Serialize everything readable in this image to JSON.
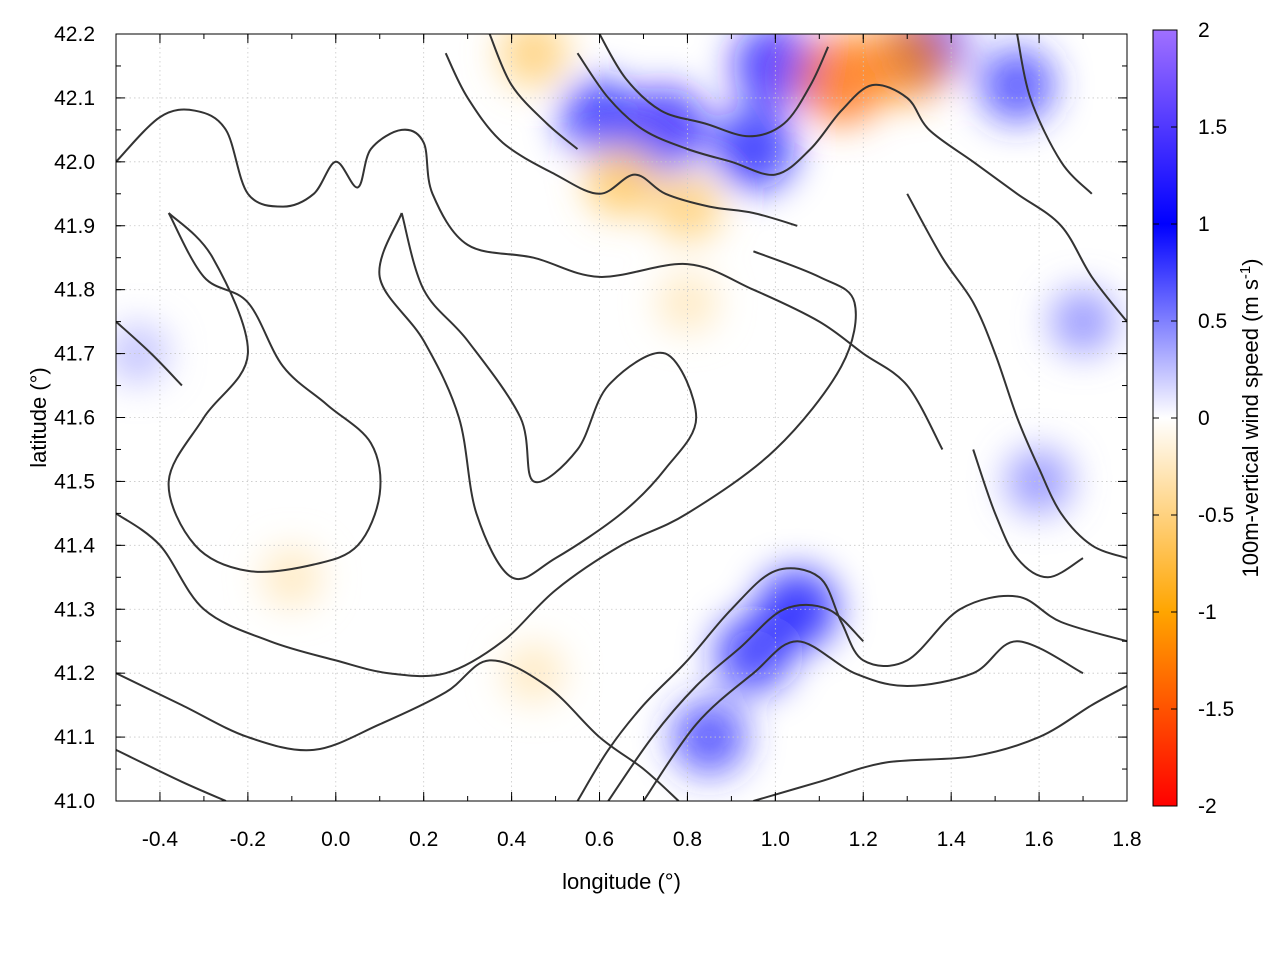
{
  "chart_data": {
    "type": "heatmap",
    "title": "",
    "xlabel": "longitude (°)",
    "ylabel": "latitude (°)",
    "colorbar_label": "100m-vertical wind speed (m s",
    "colorbar_label_sup": "-1",
    "colorbar_label_end": ")",
    "xlim": [
      -0.5,
      1.8
    ],
    "ylim": [
      41.0,
      42.2
    ],
    "x_ticks": [
      -0.4,
      -0.2,
      0.0,
      0.2,
      0.4,
      0.6,
      0.8,
      1.0,
      1.2,
      1.4,
      1.6,
      1.8
    ],
    "x_tick_labels": [
      "-0.4",
      "-0.2",
      "0.0",
      "0.2",
      "0.4",
      "0.6",
      "0.8",
      "1.0",
      "1.2",
      "1.4",
      "1.6",
      "1.8"
    ],
    "y_ticks": [
      41.0,
      41.1,
      41.2,
      41.3,
      41.4,
      41.5,
      41.6,
      41.7,
      41.8,
      41.9,
      42.0,
      42.1,
      42.2
    ],
    "y_tick_labels": [
      "41.0",
      "41.1",
      "41.2",
      "41.3",
      "41.4",
      "41.5",
      "41.6",
      "41.7",
      "41.8",
      "41.9",
      "42.0",
      "42.1",
      "42.2"
    ],
    "zlim": [
      -2,
      2
    ],
    "colorbar_ticks": [
      2,
      1.5,
      1,
      0.5,
      0,
      -0.5,
      -1,
      -1.5,
      -2
    ],
    "colorbar_tick_labels": [
      "2",
      "1.5",
      "1",
      "0.5",
      "0",
      "-0.5",
      "-1",
      "-1.5",
      "-2"
    ],
    "colormap": [
      {
        "value": -2,
        "color": "#ff0000"
      },
      {
        "value": -1,
        "color": "#ffa500"
      },
      {
        "value": 0,
        "color": "#ffffff"
      },
      {
        "value": 1,
        "color": "#0000ff"
      },
      {
        "value": 2,
        "color": "#a070ff"
      }
    ],
    "grid": true,
    "contour_color": "#333333",
    "hotspots": [
      {
        "x": 0.6,
        "y": 42.07,
        "v": 0.9
      },
      {
        "x": 0.75,
        "y": 42.05,
        "v": 1.2
      },
      {
        "x": 0.95,
        "y": 42.02,
        "v": 1.1
      },
      {
        "x": 1.0,
        "y": 42.15,
        "v": 1.2
      },
      {
        "x": 1.35,
        "y": 42.18,
        "v": 0.9
      },
      {
        "x": 1.55,
        "y": 42.12,
        "v": 0.8
      },
      {
        "x": 0.45,
        "y": 42.17,
        "v": -0.6
      },
      {
        "x": 0.65,
        "y": 41.97,
        "v": -0.7
      },
      {
        "x": 1.15,
        "y": 42.13,
        "v": -1.4
      },
      {
        "x": 1.3,
        "y": 42.16,
        "v": -1.2
      },
      {
        "x": 0.8,
        "y": 41.93,
        "v": -0.6
      },
      {
        "x": 1.05,
        "y": 41.3,
        "v": 1.0
      },
      {
        "x": 0.95,
        "y": 41.23,
        "v": 0.9
      },
      {
        "x": 0.85,
        "y": 41.1,
        "v": 0.8
      },
      {
        "x": 1.6,
        "y": 41.5,
        "v": 0.5
      },
      {
        "x": 1.7,
        "y": 41.75,
        "v": 0.5
      },
      {
        "x": 0.8,
        "y": 41.78,
        "v": -0.3
      },
      {
        "x": -0.1,
        "y": 41.35,
        "v": -0.3
      },
      {
        "x": 0.45,
        "y": 41.2,
        "v": -0.3
      },
      {
        "x": -0.45,
        "y": 41.7,
        "v": 0.3
      }
    ],
    "contours": [
      [
        [
          -0.5,
          42.0
        ],
        [
          -0.4,
          42.07
        ],
        [
          -0.32,
          42.08
        ],
        [
          -0.25,
          42.05
        ],
        [
          -0.2,
          41.95
        ],
        [
          -0.12,
          41.93
        ],
        [
          -0.05,
          41.95
        ],
        [
          0.0,
          42.0
        ],
        [
          0.05,
          41.96
        ],
        [
          0.08,
          42.02
        ],
        [
          0.15,
          42.05
        ],
        [
          0.2,
          42.03
        ],
        [
          0.22,
          41.95
        ],
        [
          0.3,
          41.87
        ],
        [
          0.45,
          41.85
        ],
        [
          0.6,
          41.82
        ],
        [
          0.8,
          41.84
        ],
        [
          0.95,
          41.8
        ],
        [
          1.1,
          41.75
        ],
        [
          1.2,
          41.7
        ],
        [
          1.3,
          41.65
        ],
        [
          1.38,
          41.55
        ]
      ],
      [
        [
          -0.38,
          41.92
        ],
        [
          -0.3,
          41.82
        ],
        [
          -0.2,
          41.78
        ],
        [
          -0.12,
          41.68
        ],
        [
          -0.02,
          41.62
        ],
        [
          0.08,
          41.56
        ],
        [
          0.1,
          41.48
        ],
        [
          0.05,
          41.4
        ],
        [
          -0.05,
          41.37
        ],
        [
          -0.2,
          41.36
        ],
        [
          -0.32,
          41.4
        ],
        [
          -0.38,
          41.5
        ],
        [
          -0.3,
          41.6
        ],
        [
          -0.2,
          41.7
        ],
        [
          -0.28,
          41.85
        ],
        [
          -0.38,
          41.92
        ]
      ],
      [
        [
          0.15,
          41.92
        ],
        [
          0.2,
          41.8
        ],
        [
          0.3,
          41.72
        ],
        [
          0.42,
          41.6
        ],
        [
          0.45,
          41.5
        ],
        [
          0.55,
          41.55
        ],
        [
          0.62,
          41.65
        ],
        [
          0.75,
          41.7
        ],
        [
          0.82,
          41.6
        ],
        [
          0.75,
          41.52
        ],
        [
          0.65,
          41.45
        ],
        [
          0.5,
          41.38
        ],
        [
          0.4,
          41.35
        ],
        [
          0.32,
          41.45
        ],
        [
          0.28,
          41.6
        ],
        [
          0.2,
          41.72
        ],
        [
          0.1,
          41.82
        ],
        [
          0.15,
          41.92
        ]
      ],
      [
        [
          -0.5,
          41.45
        ],
        [
          -0.4,
          41.4
        ],
        [
          -0.3,
          41.3
        ],
        [
          -0.15,
          41.25
        ],
        [
          0.0,
          41.22
        ],
        [
          0.12,
          41.2
        ],
        [
          0.25,
          41.2
        ],
        [
          0.38,
          41.25
        ],
        [
          0.5,
          41.33
        ],
        [
          0.65,
          41.4
        ],
        [
          0.8,
          41.45
        ],
        [
          1.0,
          41.55
        ],
        [
          1.15,
          41.68
        ],
        [
          1.18,
          41.78
        ],
        [
          1.1,
          41.82
        ],
        [
          0.95,
          41.86
        ]
      ],
      [
        [
          -0.5,
          41.2
        ],
        [
          -0.35,
          41.15
        ],
        [
          -0.2,
          41.1
        ],
        [
          -0.05,
          41.08
        ],
        [
          0.1,
          41.12
        ],
        [
          0.25,
          41.17
        ],
        [
          0.35,
          41.22
        ],
        [
          0.48,
          41.18
        ],
        [
          0.6,
          41.1
        ],
        [
          0.7,
          41.05
        ],
        [
          0.78,
          41.0
        ]
      ],
      [
        [
          -0.5,
          41.08
        ],
        [
          -0.35,
          41.03
        ],
        [
          -0.25,
          41.0
        ]
      ],
      [
        [
          0.55,
          41.0
        ],
        [
          0.62,
          41.08
        ],
        [
          0.7,
          41.15
        ],
        [
          0.8,
          41.22
        ],
        [
          0.9,
          41.3
        ],
        [
          1.0,
          41.36
        ],
        [
          1.1,
          41.35
        ],
        [
          1.15,
          41.28
        ],
        [
          1.2,
          41.22
        ],
        [
          1.3,
          41.22
        ],
        [
          1.42,
          41.3
        ],
        [
          1.55,
          41.32
        ],
        [
          1.65,
          41.28
        ],
        [
          1.8,
          41.25
        ]
      ],
      [
        [
          0.62,
          41.0
        ],
        [
          0.72,
          41.1
        ],
        [
          0.82,
          41.18
        ],
        [
          0.92,
          41.24
        ],
        [
          1.02,
          41.3
        ],
        [
          1.12,
          41.3
        ],
        [
          1.2,
          41.25
        ]
      ],
      [
        [
          0.7,
          41.0
        ],
        [
          0.82,
          41.12
        ],
        [
          0.95,
          41.2
        ],
        [
          1.05,
          41.25
        ],
        [
          1.18,
          41.2
        ],
        [
          1.3,
          41.18
        ],
        [
          1.45,
          41.2
        ],
        [
          1.55,
          41.25
        ],
        [
          1.7,
          41.2
        ]
      ],
      [
        [
          0.95,
          41.0
        ],
        [
          1.1,
          41.03
        ],
        [
          1.25,
          41.06
        ],
        [
          1.45,
          41.07
        ],
        [
          1.6,
          41.1
        ],
        [
          1.72,
          41.15
        ],
        [
          1.8,
          41.18
        ]
      ],
      [
        [
          0.55,
          42.17
        ],
        [
          0.62,
          42.1
        ],
        [
          0.7,
          42.05
        ],
        [
          0.8,
          42.02
        ],
        [
          0.9,
          42.0
        ],
        [
          1.0,
          41.98
        ],
        [
          1.08,
          42.02
        ],
        [
          1.15,
          42.08
        ],
        [
          1.22,
          42.12
        ],
        [
          1.3,
          42.1
        ],
        [
          1.35,
          42.05
        ],
        [
          1.45,
          42.0
        ],
        [
          1.55,
          41.95
        ],
        [
          1.65,
          41.9
        ],
        [
          1.72,
          41.82
        ],
        [
          1.8,
          41.75
        ]
      ],
      [
        [
          0.6,
          42.2
        ],
        [
          0.66,
          42.13
        ],
        [
          0.74,
          42.08
        ],
        [
          0.84,
          42.06
        ],
        [
          0.94,
          42.04
        ],
        [
          1.02,
          42.06
        ],
        [
          1.08,
          42.12
        ],
        [
          1.12,
          42.18
        ]
      ],
      [
        [
          0.25,
          42.17
        ],
        [
          0.3,
          42.1
        ],
        [
          0.38,
          42.03
        ],
        [
          0.5,
          41.98
        ],
        [
          0.6,
          41.95
        ],
        [
          0.68,
          41.98
        ],
        [
          0.75,
          41.95
        ],
        [
          0.85,
          41.93
        ],
        [
          0.95,
          41.92
        ],
        [
          1.05,
          41.9
        ]
      ],
      [
        [
          0.35,
          42.2
        ],
        [
          0.4,
          42.12
        ],
        [
          0.48,
          42.06
        ],
        [
          0.55,
          42.02
        ]
      ],
      [
        [
          1.3,
          41.95
        ],
        [
          1.38,
          41.85
        ],
        [
          1.45,
          41.78
        ],
        [
          1.5,
          41.7
        ],
        [
          1.55,
          41.6
        ],
        [
          1.6,
          41.52
        ],
        [
          1.65,
          41.45
        ],
        [
          1.72,
          41.4
        ],
        [
          1.8,
          41.38
        ]
      ],
      [
        [
          1.45,
          41.55
        ],
        [
          1.5,
          41.45
        ],
        [
          1.55,
          41.38
        ],
        [
          1.62,
          41.35
        ],
        [
          1.7,
          41.38
        ]
      ],
      [
        [
          -0.5,
          41.75
        ],
        [
          -0.42,
          41.7
        ],
        [
          -0.35,
          41.65
        ]
      ],
      [
        [
          1.55,
          42.2
        ],
        [
          1.58,
          42.1
        ],
        [
          1.65,
          42.0
        ],
        [
          1.72,
          41.95
        ]
      ]
    ]
  }
}
